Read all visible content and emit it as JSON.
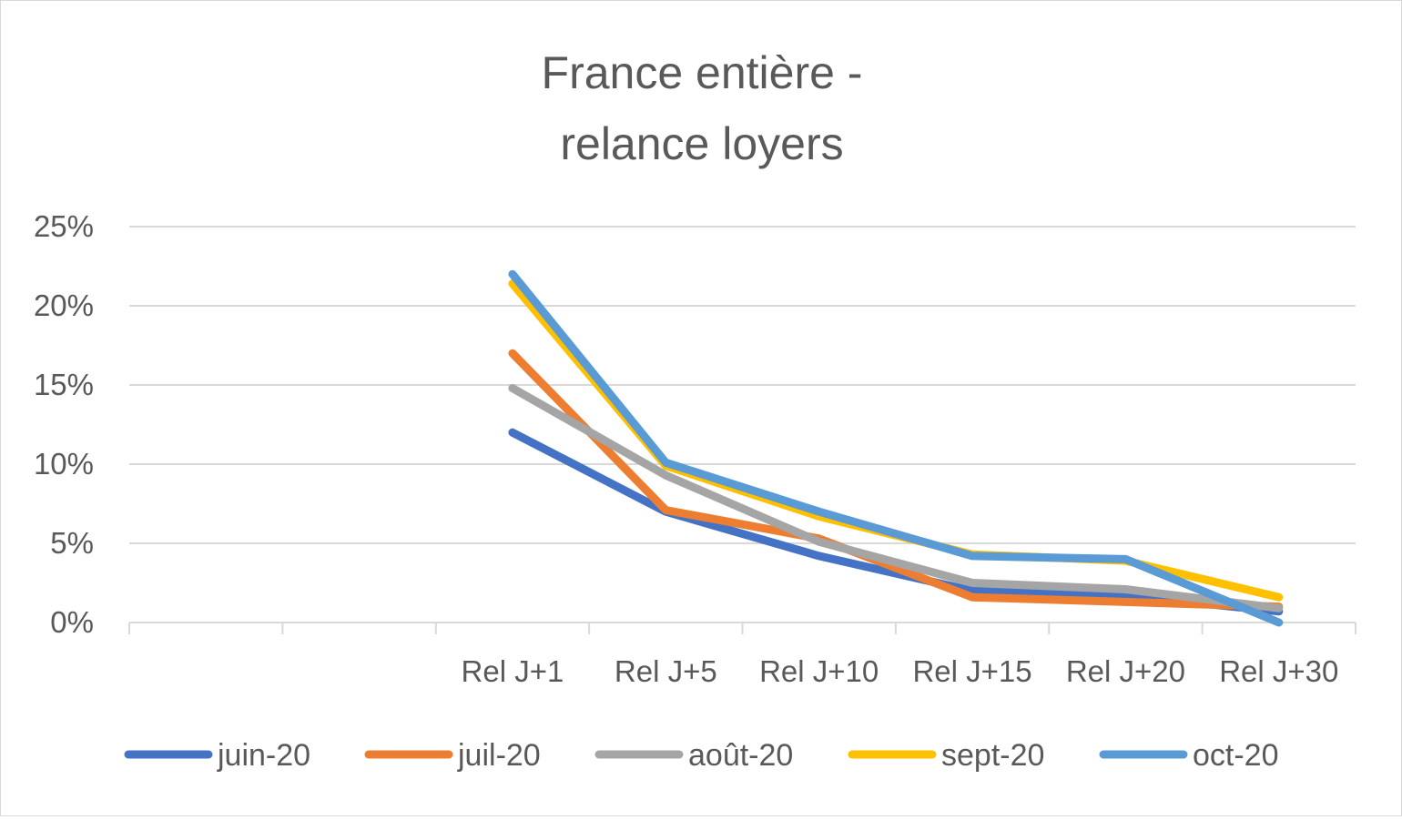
{
  "chart_data": {
    "type": "line",
    "title_lines": [
      "France entière -",
      "relance loyers"
    ],
    "categories": [
      "",
      "",
      "Rel J+1",
      "Rel J+5",
      "Rel J+10",
      "Rel J+15",
      "Rel J+20",
      "Rel J+30"
    ],
    "yticks": [
      "0%",
      "5%",
      "10%",
      "15%",
      "20%",
      "25%"
    ],
    "ylim": [
      0,
      25
    ],
    "grid": true,
    "legend_position": "bottom",
    "series": [
      {
        "name": "juin-20",
        "color": "#4472c4",
        "values": [
          null,
          null,
          12.0,
          7.0,
          4.2,
          2.0,
          1.7,
          0.7
        ]
      },
      {
        "name": "juil-20",
        "color": "#ed7d31",
        "values": [
          null,
          null,
          17.0,
          7.1,
          5.3,
          1.6,
          1.3,
          1.0
        ]
      },
      {
        "name": "août-20",
        "color": "#a5a5a5",
        "values": [
          null,
          null,
          14.8,
          9.3,
          5.1,
          2.5,
          2.1,
          0.9
        ]
      },
      {
        "name": "sept-20",
        "color": "#ffc000",
        "values": [
          null,
          null,
          21.4,
          9.9,
          6.7,
          4.3,
          3.9,
          1.6
        ]
      },
      {
        "name": "oct-20",
        "color": "#5b9bd5",
        "values": [
          null,
          null,
          22.0,
          10.1,
          7.0,
          4.2,
          4.0,
          0.0
        ]
      }
    ]
  }
}
